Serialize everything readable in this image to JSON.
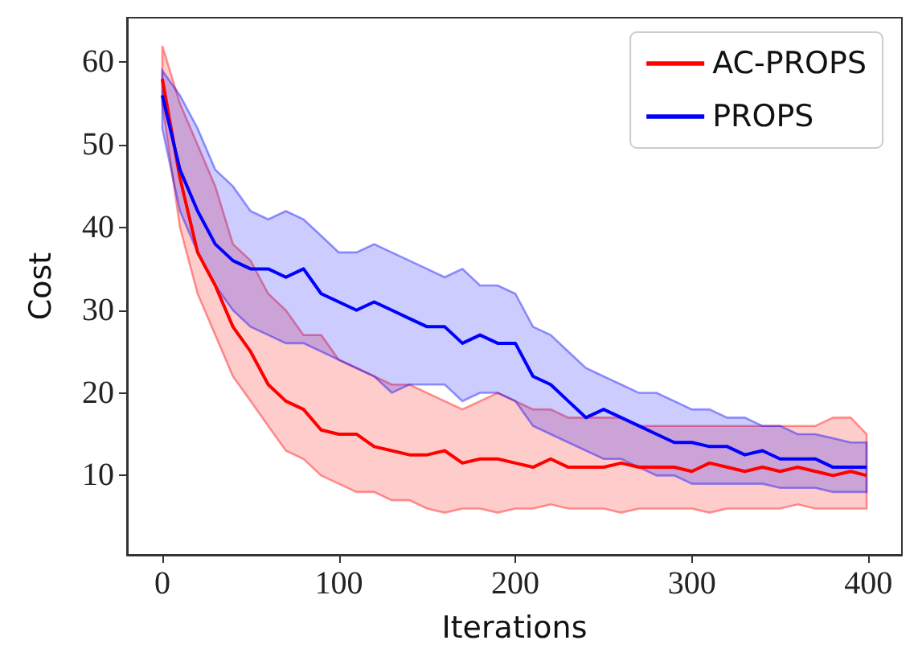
{
  "chart_data": {
    "type": "line",
    "xlabel": "Iterations",
    "ylabel": "Cost",
    "x": [
      0,
      10,
      20,
      30,
      40,
      50,
      60,
      70,
      80,
      90,
      100,
      110,
      120,
      130,
      140,
      150,
      160,
      170,
      180,
      190,
      200,
      210,
      220,
      230,
      240,
      250,
      260,
      270,
      280,
      290,
      300,
      310,
      320,
      330,
      340,
      350,
      360,
      370,
      380,
      390,
      399
    ],
    "series": [
      {
        "name": "AC-PROPS",
        "color": "#ff0000",
        "values": [
          58,
          46,
          37,
          33,
          28,
          25,
          21,
          19,
          18,
          15.5,
          15,
          15,
          13.5,
          13,
          12.5,
          12.5,
          13,
          11.5,
          12,
          12,
          11.5,
          11,
          12,
          11,
          11,
          11,
          11.5,
          11,
          11,
          11,
          10.5,
          11.5,
          11,
          10.5,
          11,
          10.5,
          11,
          10.5,
          10,
          10.5,
          10
        ],
        "lower": [
          55,
          40,
          32,
          27,
          22,
          19,
          16,
          13,
          12,
          10,
          9,
          8,
          8,
          7,
          7,
          6,
          5.5,
          6,
          6,
          5.5,
          6,
          6,
          6.5,
          6,
          6,
          6,
          5.5,
          6,
          6,
          6,
          6,
          5.5,
          6,
          6,
          6,
          6,
          6.5,
          6,
          6,
          6,
          6
        ],
        "upper": [
          62,
          55,
          50,
          45,
          38,
          36,
          32,
          30,
          27,
          27,
          24,
          23,
          22,
          21,
          21,
          20,
          19,
          18,
          19,
          20,
          19,
          18,
          18,
          17,
          17,
          17,
          17,
          16,
          16,
          16,
          16,
          16,
          16,
          16,
          16,
          16,
          16,
          16,
          17,
          17,
          15
        ]
      },
      {
        "name": "PROPS",
        "color": "#0000ff",
        "values": [
          56,
          47,
          42,
          38,
          36,
          35,
          35,
          34,
          35,
          32,
          31,
          30,
          31,
          30,
          29,
          28,
          28,
          26,
          27,
          26,
          26,
          22,
          21,
          19,
          17,
          18,
          17,
          16,
          15,
          14,
          14,
          13.5,
          13.5,
          12.5,
          13,
          12,
          12,
          12,
          11,
          11,
          11
        ],
        "lower": [
          52,
          42,
          37,
          33,
          30,
          28,
          27,
          26,
          26,
          25,
          24,
          23,
          22,
          20,
          21,
          21,
          21,
          19,
          20,
          20,
          19,
          16,
          15,
          14,
          13,
          12,
          12,
          11,
          10,
          10,
          9,
          9,
          9,
          9,
          9,
          8.5,
          8.5,
          8.5,
          8,
          8,
          8
        ],
        "upper": [
          59,
          56,
          52,
          47,
          45,
          42,
          41,
          42,
          41,
          39,
          37,
          37,
          38,
          37,
          36,
          35,
          34,
          35,
          33,
          33,
          32,
          28,
          27,
          25,
          23,
          22,
          21,
          20,
          20,
          19,
          18,
          18,
          17,
          17,
          16,
          16,
          15,
          15,
          14.5,
          14,
          14
        ]
      }
    ],
    "xlim": [
      -20,
      419
    ],
    "ylim": [
      0.4,
      65.4
    ],
    "xticks": [
      0,
      100,
      200,
      300,
      400
    ],
    "yticks": [
      10,
      20,
      30,
      40,
      50,
      60
    ],
    "grid": false,
    "legend": "top right",
    "marker": "none",
    "line_style": "solid"
  }
}
